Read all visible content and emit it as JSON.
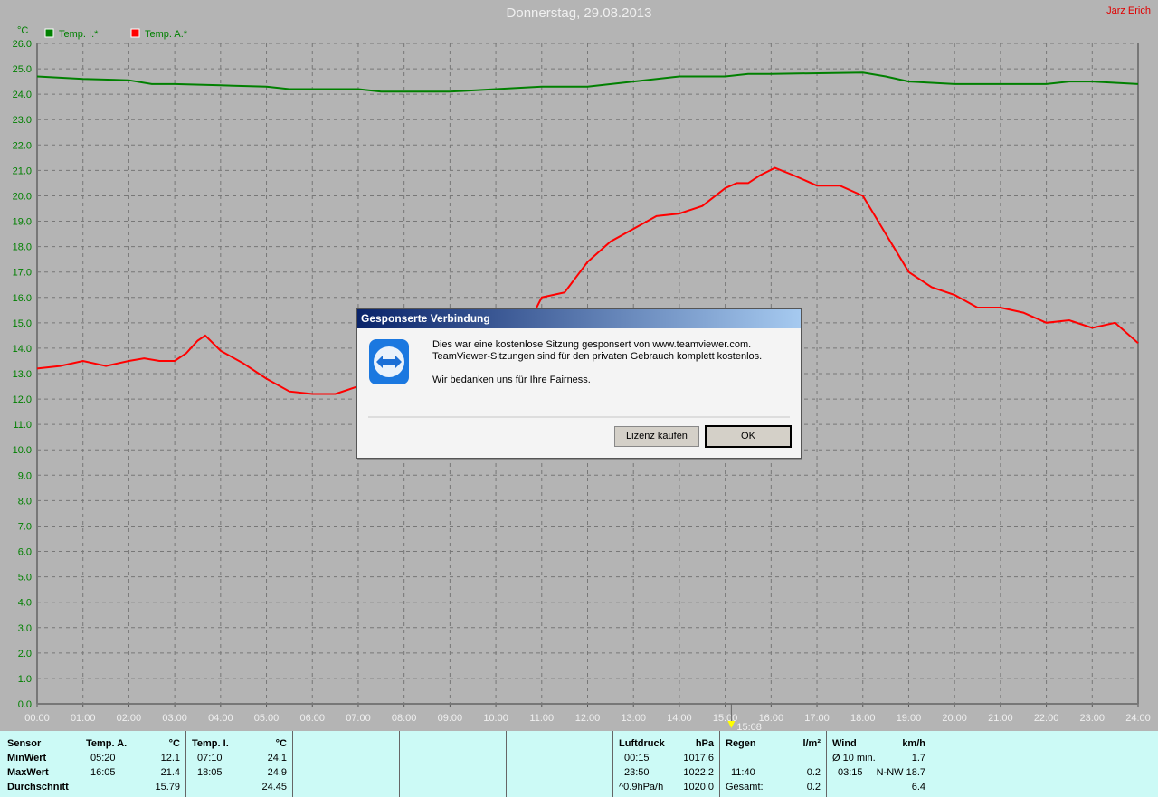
{
  "header": {
    "title": "Donnerstag, 29.08.2013",
    "author": "Jarz Erich"
  },
  "colors": {
    "temp_inside": "#008000",
    "temp_outside": "#ff0000",
    "background": "#b4b4b4",
    "panel": "#ccfaf6"
  },
  "chart_data": {
    "type": "line",
    "ylabel": "°C",
    "ylim": [
      0,
      26
    ],
    "xlim_hours": [
      0,
      24
    ],
    "grid": true,
    "legend": "top-left",
    "y_ticks": [
      "0.0",
      "1.0",
      "2.0",
      "3.0",
      "4.0",
      "5.0",
      "6.0",
      "7.0",
      "8.0",
      "9.0",
      "10.0",
      "11.0",
      "12.0",
      "13.0",
      "14.0",
      "15.0",
      "16.0",
      "17.0",
      "18.0",
      "19.0",
      "20.0",
      "21.0",
      "22.0",
      "23.0",
      "24.0",
      "25.0",
      "26.0"
    ],
    "x_ticks": [
      "00:00",
      "01:00",
      "02:00",
      "03:00",
      "04:00",
      "05:00",
      "06:00",
      "07:00",
      "08:00",
      "09:00",
      "10:00",
      "11:00",
      "12:00",
      "13:00",
      "14:00",
      "15:00",
      "16:00",
      "17:00",
      "18:00",
      "19:00",
      "20:00",
      "21:00",
      "22:00",
      "23:00",
      "24:00"
    ],
    "marker": {
      "time": "15:08"
    },
    "series": [
      {
        "name": "Temp. I.*",
        "color": "#008000",
        "x": [
          "00:00",
          "00:30",
          "01:00",
          "02:00",
          "02:30",
          "03:00",
          "04:00",
          "05:00",
          "05:30",
          "07:00",
          "07:30",
          "09:00",
          "10:00",
          "11:00",
          "12:00",
          "13:00",
          "14:00",
          "15:00",
          "15:30",
          "16:00",
          "18:00",
          "18:30",
          "19:00",
          "20:00",
          "22:00",
          "22:30",
          "23:00",
          "24:00"
        ],
        "y": [
          24.7,
          24.65,
          24.6,
          24.55,
          24.4,
          24.4,
          24.35,
          24.3,
          24.2,
          24.2,
          24.1,
          24.1,
          24.2,
          24.3,
          24.3,
          24.5,
          24.7,
          24.7,
          24.8,
          24.8,
          24.85,
          24.7,
          24.5,
          24.4,
          24.4,
          24.5,
          24.5,
          24.4
        ]
      },
      {
        "name": "Temp. A.*",
        "color": "#ff0000",
        "x": [
          "00:00",
          "00:30",
          "01:00",
          "01:30",
          "02:00",
          "02:20",
          "02:40",
          "03:00",
          "03:15",
          "03:30",
          "03:40",
          "04:00",
          "04:30",
          "05:00",
          "05:30",
          "06:00",
          "06:30",
          "07:00",
          "07:10",
          "08:00",
          "09:00",
          "10:00",
          "10:50",
          "11:00",
          "11:30",
          "12:00",
          "12:30",
          "13:00",
          "13:30",
          "14:00",
          "14:30",
          "15:00",
          "15:15",
          "15:30",
          "15:45",
          "16:05",
          "16:30",
          "17:00",
          "17:30",
          "18:00",
          "18:30",
          "19:00",
          "19:30",
          "20:00",
          "20:30",
          "21:00",
          "21:30",
          "22:00",
          "22:30",
          "23:00",
          "23:30",
          "24:00"
        ],
        "y": [
          13.2,
          13.3,
          13.5,
          13.3,
          13.5,
          13.6,
          13.5,
          13.5,
          13.8,
          14.3,
          14.5,
          13.9,
          13.4,
          12.8,
          12.3,
          12.2,
          12.2,
          12.5,
          12.7,
          13.3,
          14.0,
          14.8,
          15.4,
          16.0,
          16.2,
          17.4,
          18.2,
          18.7,
          19.2,
          19.3,
          19.6,
          20.3,
          20.5,
          20.5,
          20.8,
          21.1,
          20.8,
          20.4,
          20.4,
          20.0,
          18.5,
          17.0,
          16.4,
          16.1,
          15.6,
          15.6,
          15.4,
          15.0,
          15.1,
          14.8,
          15.0,
          14.2
        ]
      }
    ]
  },
  "panel": {
    "sensor": {
      "h": "Sensor",
      "min": "MinWert",
      "max": "MaxWert",
      "avg": "Durchschnitt"
    },
    "temp_a": {
      "h": "Temp. A.",
      "unit": "°C",
      "min_t": "05:20",
      "min_v": "12.1",
      "max_t": "16:05",
      "max_v": "21.4",
      "avg": "15.79"
    },
    "temp_i": {
      "h": "Temp. I.",
      "unit": "°C",
      "min_t": "07:10",
      "min_v": "24.1",
      "max_t": "18:05",
      "max_v": "24.9",
      "avg": "24.45"
    },
    "pressure": {
      "h": "Luftdruck",
      "unit": "hPa",
      "r1t": "00:15",
      "r1v": "1017.6",
      "r2t": "23:50",
      "r2v": "1022.2",
      "r3t": "^0.9hPa/h",
      "r3v": "1020.0"
    },
    "rain": {
      "h": "Regen",
      "unit": "l/m²",
      "r2t": "11:40",
      "r2v": "0.2",
      "r3t": "Gesamt:",
      "r3v": "0.2"
    },
    "wind": {
      "h": "Wind",
      "unit": "km/h",
      "r1t": "Ø 10 min.",
      "r1v": "1.7",
      "r2t": "03:15",
      "r2v": "N-NW 18.7",
      "r3v": "6.4"
    }
  },
  "dialog": {
    "title": "Gesponserte Verbindung",
    "line1": "Dies war eine kostenlose Sitzung gesponsert von www.teamviewer.com.",
    "line2": "TeamViewer-Sitzungen sind für den privaten Gebrauch komplett kostenlos.",
    "line3": "Wir bedanken uns für Ihre Fairness.",
    "buy": "Lizenz kaufen",
    "ok": "OK"
  }
}
